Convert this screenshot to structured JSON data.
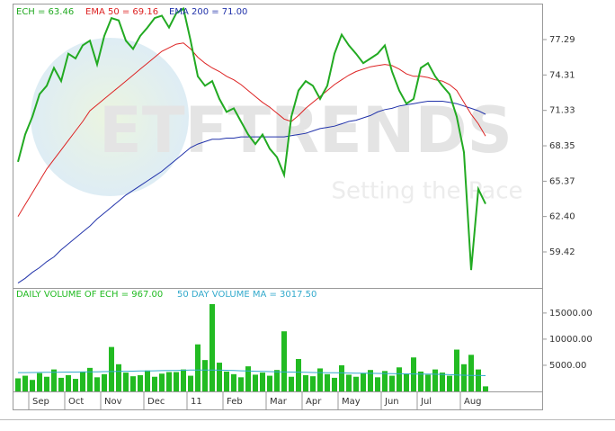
{
  "chart_data": [
    {
      "type": "line",
      "watermark": "ETFTRENDS",
      "watermark_subtitle": "Setting the Pace",
      "ylim": [
        56.39,
        80.24
      ],
      "yticks": [
        {
          "value": 59.42,
          "label": "59.42"
        },
        {
          "value": 62.4,
          "label": "62.40"
        },
        65.37,
        68.35,
        71.33,
        74.31,
        77.29
      ],
      "series": [
        {
          "name": "ECH = 63.46",
          "color": "#22aa22",
          "values": [
            67.0,
            69.3,
            70.8,
            72.7,
            73.4,
            74.9,
            73.8,
            76.1,
            75.7,
            76.8,
            77.2,
            75.2,
            77.6,
            79.1,
            78.9,
            77.2,
            76.5,
            77.6,
            78.3,
            79.1,
            79.3,
            78.3,
            79.5,
            79.9,
            77.2,
            74.2,
            73.4,
            73.8,
            72.3,
            71.2,
            71.5,
            70.4,
            69.3,
            68.5,
            69.3,
            68.1,
            67.4,
            65.9,
            70.8,
            73.0,
            73.8,
            73.4,
            72.3,
            73.4,
            76.1,
            77.7,
            76.8,
            76.1,
            75.3,
            75.7,
            76.1,
            76.8,
            74.6,
            73.0,
            71.9,
            72.3,
            74.9,
            75.3,
            74.2,
            73.4,
            72.7,
            70.8,
            67.8,
            57.9,
            64.7,
            63.46
          ]
        },
        {
          "name": "EMA 50 = 69.16",
          "color": "#dd2222",
          "values": [
            62.4,
            63.4,
            64.4,
            65.4,
            66.4,
            67.2,
            68.0,
            68.8,
            69.6,
            70.4,
            71.3,
            71.8,
            72.3,
            72.8,
            73.3,
            73.8,
            74.3,
            74.8,
            75.3,
            75.8,
            76.3,
            76.6,
            76.9,
            77.0,
            76.5,
            75.8,
            75.3,
            74.9,
            74.6,
            74.2,
            73.9,
            73.5,
            73.0,
            72.5,
            72.0,
            71.6,
            71.1,
            70.6,
            70.4,
            70.9,
            71.5,
            72.0,
            72.5,
            73.0,
            73.5,
            73.9,
            74.3,
            74.6,
            74.8,
            75.0,
            75.1,
            75.2,
            75.1,
            74.8,
            74.4,
            74.2,
            74.2,
            74.1,
            73.9,
            73.8,
            73.5,
            73.0,
            72.0,
            71.0,
            70.2,
            69.16
          ]
        },
        {
          "name": "EMA 200 = 71.00",
          "color": "#2233aa",
          "values": [
            56.8,
            57.2,
            57.7,
            58.1,
            58.6,
            59.0,
            59.6,
            60.1,
            60.6,
            61.1,
            61.6,
            62.2,
            62.7,
            63.2,
            63.7,
            64.2,
            64.6,
            65.0,
            65.4,
            65.8,
            66.2,
            66.7,
            67.2,
            67.7,
            68.2,
            68.5,
            68.7,
            68.9,
            68.9,
            69.0,
            69.0,
            69.1,
            69.1,
            69.1,
            69.1,
            69.1,
            69.1,
            69.1,
            69.2,
            69.3,
            69.4,
            69.6,
            69.8,
            69.9,
            70.0,
            70.2,
            70.4,
            70.5,
            70.7,
            70.9,
            71.2,
            71.4,
            71.5,
            71.7,
            71.8,
            71.9,
            72.0,
            72.1,
            72.1,
            72.1,
            72.0,
            71.9,
            71.7,
            71.5,
            71.3,
            71.0
          ]
        }
      ]
    },
    {
      "type": "bar",
      "ylim": [
        0,
        19800
      ],
      "yticks": [
        {
          "value": 5000,
          "label": "5000.00"
        },
        {
          "value": 10000,
          "label": "10000.00"
        },
        {
          "value": 15000,
          "label": "15000.00"
        }
      ],
      "categories": [
        null,
        null,
        "Sep",
        null,
        null,
        null,
        null,
        "Oct",
        null,
        null,
        null,
        null,
        "Nov",
        null,
        null,
        null,
        null,
        null,
        "Dec",
        null,
        null,
        null,
        null,
        null,
        "11",
        null,
        null,
        null,
        null,
        "Feb",
        null,
        null,
        null,
        null,
        null,
        "Mar",
        null,
        null,
        null,
        null,
        "Apr",
        null,
        null,
        null,
        null,
        "May",
        null,
        null,
        null,
        null,
        null,
        "Jun",
        null,
        null,
        null,
        null,
        "Jul",
        null,
        null,
        null,
        null,
        null,
        "Aug",
        null,
        null,
        null
      ],
      "series": [
        {
          "name": "DAILY VOLUME OF ECH = 967.00",
          "color": "#22bb22",
          "values": [
            2500,
            3000,
            2200,
            3500,
            2800,
            4200,
            2600,
            3100,
            2400,
            3800,
            4500,
            2700,
            3300,
            8500,
            5200,
            3600,
            2900,
            3100,
            4000,
            2800,
            3400,
            3700,
            3700,
            4200,
            3000,
            9000,
            6000,
            16700,
            5500,
            3800,
            3300,
            2700,
            4800,
            3200,
            3600,
            3000,
            4100,
            11500,
            2800,
            6200,
            3100,
            2900,
            4400,
            3300,
            2600,
            5000,
            3200,
            2800,
            3500,
            4100,
            2700,
            3900,
            3000,
            4600,
            3400,
            6500,
            3800,
            3200,
            4200,
            3600,
            3000,
            8000,
            5200,
            7000,
            4200,
            967
          ]
        },
        {
          "name": "50 DAY VOLUME MA = 3017.50",
          "type": "line",
          "color": "#33aacc",
          "values": [
            3600,
            3600,
            3620,
            3640,
            3650,
            3660,
            3680,
            3700,
            3700,
            3720,
            3740,
            3760,
            3780,
            3800,
            3820,
            3850,
            3880,
            3900,
            3920,
            3950,
            3980,
            4000,
            4020,
            4050,
            4080,
            4100,
            4100,
            4080,
            4060,
            4040,
            4000,
            3950,
            3900,
            3860,
            3820,
            3780,
            3750,
            3720,
            3700,
            3680,
            3650,
            3620,
            3600,
            3580,
            3560,
            3540,
            3520,
            3500,
            3480,
            3460,
            3440,
            3420,
            3400,
            3380,
            3360,
            3340,
            3320,
            3300,
            3280,
            3250,
            3200,
            3150,
            3100,
            3070,
            3040,
            3017.5
          ]
        }
      ]
    }
  ]
}
